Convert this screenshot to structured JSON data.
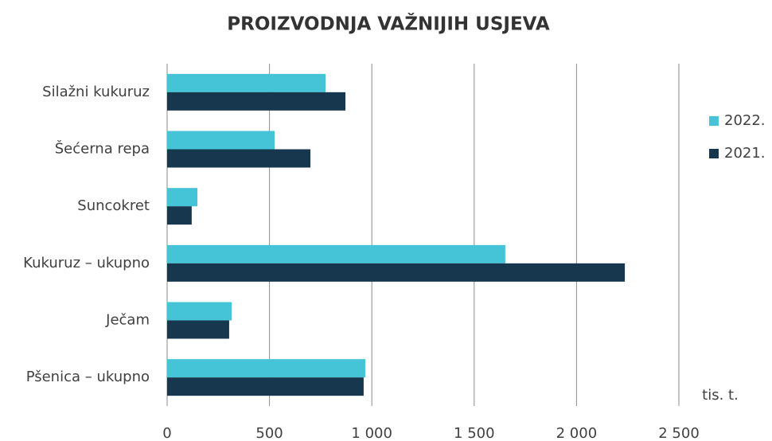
{
  "chart_data": {
    "type": "bar",
    "orientation": "horizontal",
    "title": "PROIZVODNJA VAŽNIJIH USJEVA",
    "categories": [
      "Silažni kukuruz",
      "Šećerna repa",
      "Suncokret",
      "Kukuruz – ukupno",
      "Ječam",
      "Pšenica – ukupno"
    ],
    "series": [
      {
        "name": "2022.",
        "color": "#45c4d8",
        "values": [
          774,
          525,
          148,
          1652,
          315,
          968
        ]
      },
      {
        "name": "2021.",
        "color": "#17374f",
        "values": [
          871,
          700,
          120,
          2236,
          303,
          960
        ]
      }
    ],
    "xlim": [
      0,
      2500
    ],
    "xticks": [
      0,
      500,
      {
        "value": 1000,
        "label": "1 000"
      },
      {
        "value": 1500,
        "label": "1 500"
      },
      {
        "value": 2000,
        "label": "2 000"
      },
      {
        "value": 2500,
        "label": "2 500"
      }
    ],
    "x_unit_label": "tis. t.",
    "grid": true,
    "legend": "right"
  }
}
